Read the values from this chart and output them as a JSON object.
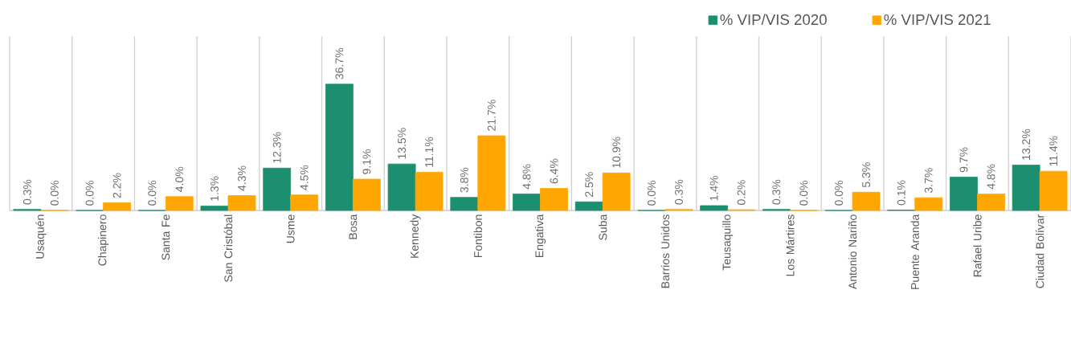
{
  "chart_data": {
    "type": "bar",
    "categories": [
      "Usaquén",
      "Chapinero",
      "Santa Fe",
      "San Cristóbal",
      "Usme",
      "Bosa",
      "Kennedy",
      "Fontibon",
      "Engativa",
      "Suba",
      "Barrios Unidos",
      "Teusaquillo",
      "Los Mártires",
      "Antonio Nariño",
      "Puente Aranda",
      "Rafael Uribe",
      "Ciudad Bolívar"
    ],
    "series": [
      {
        "name": "% VIP/VIS 2020",
        "color": "#1b8f6f",
        "values": [
          0.3,
          0.0,
          0.0,
          1.3,
          12.3,
          36.7,
          13.5,
          3.8,
          4.8,
          2.5,
          0.0,
          1.4,
          0.3,
          0.0,
          0.1,
          9.7,
          13.2
        ],
        "value_labels": [
          "0.3%",
          "0.0%",
          "0.0%",
          "1.3%",
          "12.3%",
          "36.7%",
          "13.5%",
          "3.8%",
          "4.8%",
          "2.5%",
          "0.0%",
          "1.4%",
          "0.3%",
          "0.0%",
          "0.1%",
          "9.7%",
          "13.2%"
        ]
      },
      {
        "name": "% VIP/VIS 2021",
        "color": "#ffa602",
        "values": [
          0.0,
          2.2,
          4.0,
          4.3,
          4.5,
          9.1,
          11.1,
          21.7,
          6.4,
          10.9,
          0.3,
          0.2,
          0.0,
          5.3,
          3.7,
          4.8,
          11.4
        ],
        "value_labels": [
          "0.0%",
          "2.2%",
          "4.0%",
          "4.3%",
          "4.5%",
          "9.1%",
          "11.1%",
          "21.7%",
          "6.4%",
          "10.9%",
          "0.3%",
          "0.2%",
          "0.0%",
          "5.3%",
          "3.7%",
          "4.8%",
          "11.4%"
        ]
      }
    ],
    "grid": "x",
    "legend": "top right"
  }
}
